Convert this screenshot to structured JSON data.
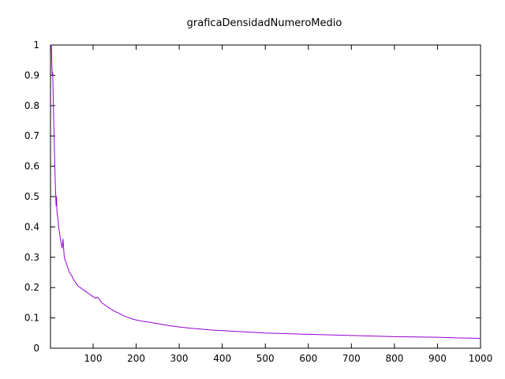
{
  "chart_data": {
    "type": "line",
    "title": "graficaDensidadNumeroMedio",
    "xlabel": "",
    "ylabel": "",
    "xlim": [
      1,
      1000
    ],
    "ylim": [
      0,
      1
    ],
    "x_ticks": [
      100,
      200,
      300,
      400,
      500,
      600,
      700,
      800,
      900,
      1000
    ],
    "y_ticks": [
      0,
      0.1,
      0.2,
      0.3,
      0.4,
      0.5,
      0.6,
      0.7,
      0.8,
      0.9,
      1
    ],
    "x_tick_labels": [
      "100",
      "200",
      "300",
      "400",
      "500",
      "600",
      "700",
      "800",
      "900",
      "1000"
    ],
    "y_tick_labels": [
      "0",
      "0.1",
      "0.2",
      "0.3",
      "0.4",
      "0.5",
      "0.6",
      "0.7",
      "0.8",
      "0.9",
      "1"
    ],
    "grid": false,
    "legend": "none",
    "series": [
      {
        "color": "#9400d3",
        "x": [
          1,
          3,
          5,
          6,
          7,
          8,
          9,
          10,
          11,
          12,
          13,
          14,
          15,
          16,
          18,
          20,
          22,
          25,
          28,
          30,
          33,
          35,
          38,
          40,
          45,
          50,
          55,
          60,
          65,
          70,
          75,
          80,
          85,
          90,
          95,
          100,
          105,
          110,
          115,
          120,
          130,
          140,
          150,
          160,
          170,
          180,
          190,
          200,
          210,
          220,
          230,
          250,
          275,
          300,
          325,
          350,
          375,
          400,
          425,
          450,
          475,
          500,
          550,
          600,
          650,
          700,
          750,
          800,
          850,
          900,
          950,
          990,
          1000
        ],
        "y": [
          1.0,
          1.0,
          0.9,
          0.91,
          0.85,
          0.78,
          0.72,
          0.66,
          0.6,
          0.55,
          0.51,
          0.47,
          0.5,
          0.45,
          0.43,
          0.4,
          0.38,
          0.35,
          0.33,
          0.36,
          0.3,
          0.29,
          0.28,
          0.27,
          0.25,
          0.24,
          0.225,
          0.215,
          0.205,
          0.2,
          0.195,
          0.19,
          0.185,
          0.18,
          0.175,
          0.17,
          0.165,
          0.168,
          0.16,
          0.15,
          0.14,
          0.13,
          0.122,
          0.115,
          0.108,
          0.102,
          0.097,
          0.093,
          0.09,
          0.088,
          0.086,
          0.081,
          0.075,
          0.07,
          0.066,
          0.063,
          0.06,
          0.058,
          0.056,
          0.054,
          0.052,
          0.05,
          0.048,
          0.046,
          0.044,
          0.042,
          0.04,
          0.038,
          0.037,
          0.036,
          0.034,
          0.033,
          0.032
        ]
      }
    ]
  }
}
